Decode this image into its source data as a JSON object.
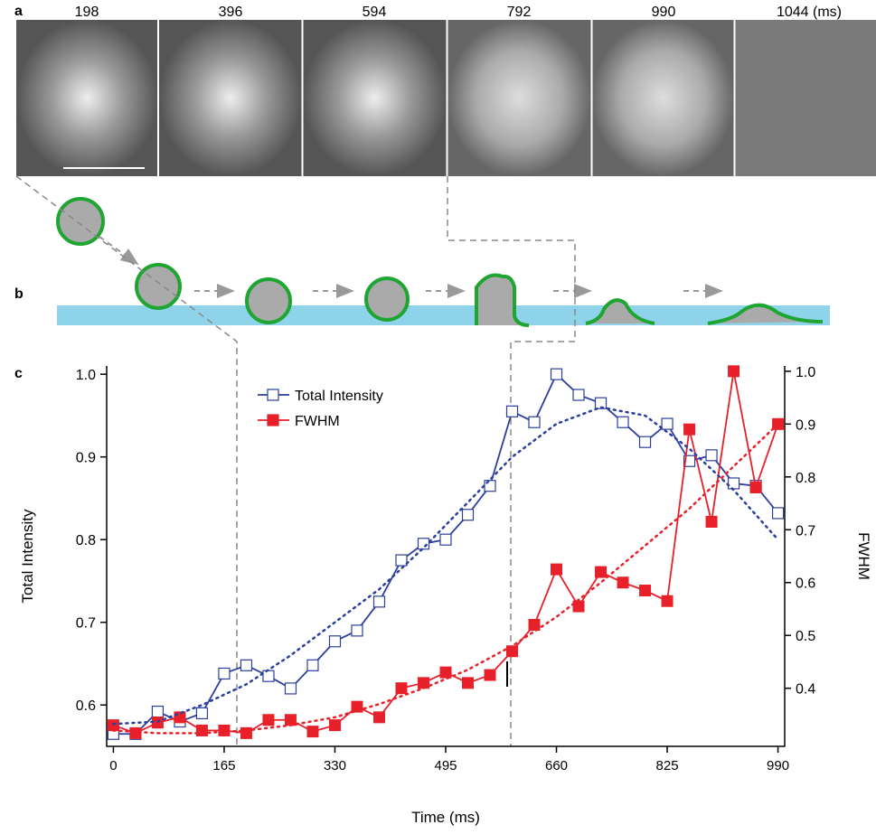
{
  "panel_labels": [
    "a",
    "b",
    "c"
  ],
  "frame_times": [
    "198",
    "396",
    "594",
    "792",
    "990",
    "1044 (ms)"
  ],
  "chart_data": {
    "type": "line",
    "x_label": "Time (ms)",
    "y_label": "Total Intensity",
    "y2_label": "FWHM",
    "x": [
      0,
      33,
      66,
      99,
      132,
      165,
      198,
      231,
      264,
      297,
      330,
      363,
      396,
      429,
      462,
      495,
      528,
      561,
      594,
      627,
      660,
      693,
      726,
      759,
      792,
      825,
      858,
      891,
      924,
      957,
      990
    ],
    "series": [
      {
        "name": "Total Intensity",
        "color": "#2b3f9e",
        "marker": "open-square",
        "values": [
          0.565,
          0.565,
          0.592,
          0.58,
          0.59,
          0.638,
          0.648,
          0.635,
          0.62,
          0.648,
          0.677,
          0.69,
          0.725,
          0.775,
          0.795,
          0.8,
          0.83,
          0.865,
          0.955,
          0.942,
          1.0,
          0.975,
          0.965,
          0.942,
          0.918,
          0.94,
          0.895,
          0.902,
          0.868,
          0.865,
          0.832
        ]
      },
      {
        "name": "FWHM",
        "color": "#e8202a",
        "marker": "filled-square",
        "axis": "y2",
        "values": [
          0.33,
          0.315,
          0.335,
          0.345,
          0.32,
          0.32,
          0.315,
          0.34,
          0.34,
          0.318,
          0.33,
          0.365,
          0.345,
          0.4,
          0.41,
          0.43,
          0.41,
          0.425,
          0.47,
          0.52,
          0.625,
          0.555,
          0.62,
          0.6,
          0.585,
          0.565,
          0.89,
          0.715,
          1.0,
          0.78,
          0.9
        ]
      },
      {
        "color": "#2b3f9e",
        "style": "dotted",
        "x": [
          0,
          66,
          132,
          198,
          264,
          330,
          396,
          462,
          528,
          594,
          660,
          726,
          792,
          858,
          924,
          990
        ],
        "values": [
          0.577,
          0.58,
          0.6,
          0.625,
          0.66,
          0.7,
          0.74,
          0.79,
          0.845,
          0.9,
          0.94,
          0.96,
          0.95,
          0.91,
          0.86,
          0.8
        ]
      },
      {
        "color": "#e8202a",
        "style": "dotted",
        "axis": "y2",
        "x": [
          0,
          66,
          132,
          198,
          264,
          330,
          396,
          462,
          528,
          594,
          660,
          726,
          792,
          858,
          924,
          990
        ],
        "values": [
          0.32,
          0.315,
          0.315,
          0.32,
          0.33,
          0.345,
          0.37,
          0.4,
          0.435,
          0.48,
          0.535,
          0.6,
          0.67,
          0.74,
          0.82,
          0.9
        ]
      }
    ],
    "xlim": [
      -10,
      1000
    ],
    "xticks": [
      0,
      165,
      330,
      495,
      660,
      825,
      990
    ],
    "ylim": [
      0.55,
      1.01
    ],
    "yticks": [
      0.6,
      0.7,
      0.8,
      0.9,
      {
        "value": 1,
        "label": "1.0"
      }
    ],
    "y2lim": [
      0.29,
      1.01
    ],
    "y2ticks": [
      0.4,
      0.5,
      0.6,
      0.7,
      0.8,
      0.9,
      {
        "value": 1,
        "label": "1.0"
      }
    ]
  }
}
